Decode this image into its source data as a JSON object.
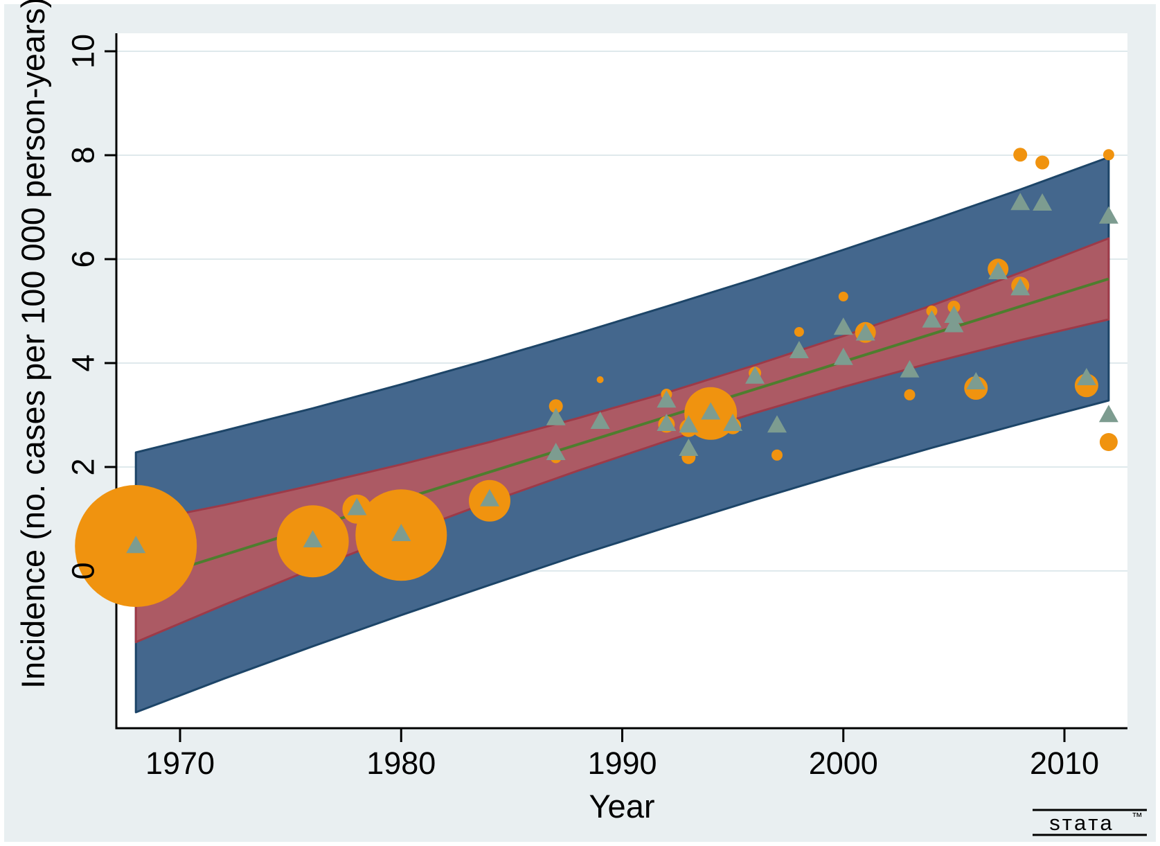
{
  "figure": {
    "background_color": "#e9eff1",
    "plot_background": "#ffffff",
    "gridline_color": "#dfe9ec",
    "axis_color": "#000000",
    "watermark": {
      "text": "sтaтa",
      "tm": "™"
    }
  },
  "chart_data": {
    "type": "scatter",
    "subtype": "meta-regression bubble plot with confidence and prediction bands",
    "title": "",
    "xlabel": "Year",
    "ylabel": "Incidence (no. cases per 100 000 person-years)",
    "x_ticks": [
      1970,
      1980,
      1990,
      2000,
      2010
    ],
    "y_ticks": [
      0,
      2,
      4,
      6,
      8,
      10
    ],
    "xlim": [
      1967.1,
      2012.9
    ],
    "ylim": [
      -3.05,
      10.35
    ],
    "grid": "horizontal",
    "legend_position": "none",
    "regression_line": {
      "color": "#4e7d2e",
      "x": [
        1968,
        2012
      ],
      "y": [
        -0.22,
        5.62
      ]
    },
    "ci_band": {
      "color": "#ac5a64",
      "border_color": "#9d3a48",
      "x": [
        1968,
        1972,
        1976,
        1980,
        1984,
        1988,
        1992,
        1996,
        2000,
        2004,
        2008,
        2012
      ],
      "upper": [
        0.93,
        1.27,
        1.65,
        2.05,
        2.48,
        2.94,
        3.43,
        3.96,
        4.52,
        5.11,
        5.74,
        6.4
      ],
      "lower": [
        -1.37,
        -0.65,
        0.04,
        0.7,
        1.33,
        1.93,
        2.5,
        3.04,
        3.54,
        4.01,
        4.44,
        4.84
      ]
    },
    "pi_band": {
      "color": "#44678d",
      "border_color": "#1d4568",
      "x": [
        1968,
        1972,
        1976,
        1980,
        1984,
        1988,
        1992,
        1996,
        2000,
        2004,
        2008,
        2012
      ],
      "upper": [
        2.28,
        2.7,
        3.13,
        3.59,
        4.07,
        4.57,
        5.09,
        5.62,
        6.18,
        6.75,
        7.34,
        7.96
      ],
      "lower": [
        -2.72,
        -2.07,
        -1.45,
        -0.85,
        -0.27,
        0.3,
        0.84,
        1.37,
        1.88,
        2.37,
        2.83,
        3.28
      ]
    },
    "bubbles": {
      "color": "#f0930f",
      "note": "x=year, y=incidence, r=bubble radius px (study weight)",
      "points": [
        [
          1968,
          0.48,
          88
        ],
        [
          1976,
          0.57,
          52
        ],
        [
          1978,
          1.19,
          21
        ],
        [
          1980,
          0.69,
          66
        ],
        [
          1984,
          1.35,
          30
        ],
        [
          1987,
          3.17,
          10
        ],
        [
          1987,
          2.18,
          8
        ],
        [
          1989,
          3.68,
          5
        ],
        [
          1992,
          3.4,
          8
        ],
        [
          1992,
          2.82,
          12
        ],
        [
          1993,
          2.75,
          13
        ],
        [
          1993,
          2.19,
          10
        ],
        [
          1994,
          3.03,
          38
        ],
        [
          1995,
          2.79,
          12
        ],
        [
          1996,
          3.81,
          9
        ],
        [
          1997,
          2.23,
          8
        ],
        [
          1998,
          4.6,
          7
        ],
        [
          2000,
          5.28,
          7
        ],
        [
          2001,
          4.59,
          15
        ],
        [
          2003,
          3.39,
          8
        ],
        [
          2004,
          5.0,
          8
        ],
        [
          2005,
          5.08,
          9
        ],
        [
          2006,
          3.52,
          17
        ],
        [
          2007,
          5.81,
          15
        ],
        [
          2008,
          5.49,
          13
        ],
        [
          2008,
          8.01,
          10
        ],
        [
          2009,
          7.86,
          10
        ],
        [
          2011,
          3.57,
          17
        ],
        [
          2012,
          8.01,
          8
        ],
        [
          2012,
          2.48,
          13
        ]
      ]
    },
    "triangles": {
      "color": "#7d9c90",
      "note": "x=year, y=incidence",
      "points": [
        [
          1968,
          0.49
        ],
        [
          1976,
          0.6
        ],
        [
          1978,
          1.22
        ],
        [
          1980,
          0.72
        ],
        [
          1984,
          1.39
        ],
        [
          1987,
          2.95
        ],
        [
          1987,
          2.28
        ],
        [
          1989,
          2.88
        ],
        [
          1992,
          3.29
        ],
        [
          1992,
          2.84
        ],
        [
          1993,
          2.81
        ],
        [
          1993,
          2.36
        ],
        [
          1994,
          3.06
        ],
        [
          1995,
          2.84
        ],
        [
          1996,
          3.75
        ],
        [
          1997,
          2.81
        ],
        [
          1998,
          4.24
        ],
        [
          2000,
          4.69
        ],
        [
          2000,
          4.11
        ],
        [
          2001,
          4.58
        ],
        [
          2003,
          3.87
        ],
        [
          2004,
          4.83
        ],
        [
          2005,
          4.92
        ],
        [
          2005,
          4.74
        ],
        [
          2006,
          3.64
        ],
        [
          2007,
          5.76
        ],
        [
          2008,
          5.45
        ],
        [
          2008,
          7.09
        ],
        [
          2009,
          7.08
        ],
        [
          2011,
          3.72
        ],
        [
          2012,
          6.83
        ],
        [
          2012,
          3.01
        ]
      ]
    }
  }
}
